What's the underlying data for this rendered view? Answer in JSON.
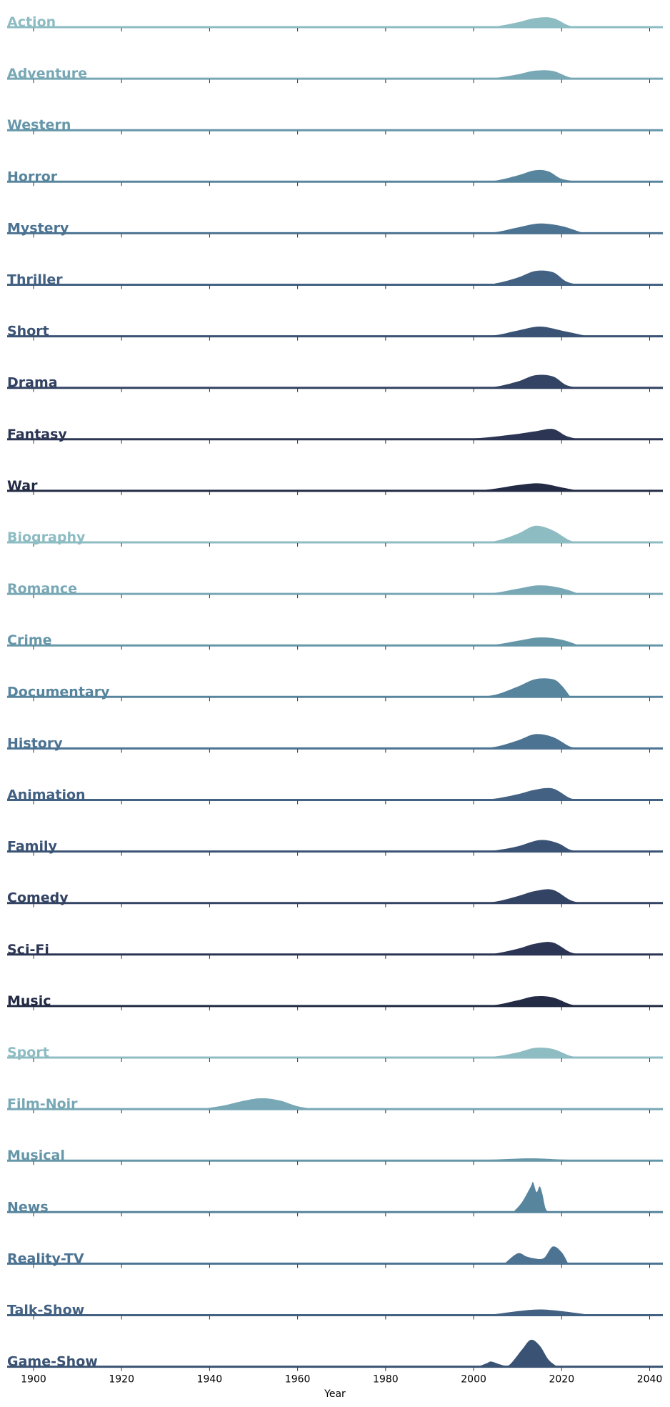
{
  "chart_data": {
    "type": "area",
    "subtype": "ridgeline-density",
    "xlabel": "Year",
    "xlim": [
      1894,
      2043
    ],
    "xticks": [
      1900,
      1920,
      1940,
      1960,
      1980,
      2000,
      2020,
      2040
    ],
    "ylim": [
      0,
      1
    ],
    "grid": false,
    "legend": "none",
    "palette": [
      "#8ebcc3",
      "#78a8b5",
      "#6697a9",
      "#58859e",
      "#4c7392",
      "#426183",
      "#3a5273",
      "#334363",
      "#2c3654",
      "#232b45"
    ],
    "series": [
      {
        "name": "Action",
        "x": [
          2000,
          2005,
          2010,
          2014,
          2018,
          2022,
          2026
        ],
        "y": [
          0.0,
          0.03,
          0.17,
          0.32,
          0.32,
          0.04,
          0.0
        ]
      },
      {
        "name": "Adventure",
        "x": [
          2000,
          2005,
          2010,
          2014,
          2018,
          2022,
          2026
        ],
        "y": [
          0.0,
          0.03,
          0.15,
          0.28,
          0.27,
          0.04,
          0.0
        ]
      },
      {
        "name": "Western",
        "x": [
          1990,
          2005,
          2015,
          2025,
          2035
        ],
        "y": [
          0.0,
          0.01,
          0.02,
          0.01,
          0.0
        ]
      },
      {
        "name": "Horror",
        "x": [
          2000,
          2005,
          2010,
          2014,
          2017,
          2020,
          2024
        ],
        "y": [
          0.0,
          0.04,
          0.22,
          0.4,
          0.36,
          0.1,
          0.0
        ]
      },
      {
        "name": "Mystery",
        "x": [
          2000,
          2005,
          2010,
          2015,
          2020,
          2025
        ],
        "y": [
          0.0,
          0.04,
          0.2,
          0.34,
          0.25,
          0.0
        ]
      },
      {
        "name": "Thriller",
        "x": [
          1900,
          1915,
          1920,
          2000,
          2005,
          2010,
          2014,
          2018,
          2021,
          2024
        ],
        "y": [
          0.0,
          0.01,
          0.0,
          0.0,
          0.05,
          0.25,
          0.48,
          0.44,
          0.12,
          0.0
        ]
      },
      {
        "name": "Short",
        "x": [
          2000,
          2005,
          2010,
          2015,
          2020,
          2026
        ],
        "y": [
          0.0,
          0.04,
          0.2,
          0.34,
          0.2,
          0.0
        ]
      },
      {
        "name": "Drama",
        "x": [
          2000,
          2005,
          2010,
          2014,
          2018,
          2021,
          2024
        ],
        "y": [
          0.0,
          0.04,
          0.22,
          0.44,
          0.4,
          0.1,
          0.0
        ]
      },
      {
        "name": "Fantasy",
        "x": [
          1990,
          2000,
          2008,
          2014,
          2018,
          2021,
          2024
        ],
        "y": [
          0.0,
          0.03,
          0.15,
          0.28,
          0.36,
          0.12,
          0.0
        ]
      },
      {
        "name": "War",
        "x": [
          1995,
          2003,
          2010,
          2015,
          2020,
          2024
        ],
        "y": [
          0.0,
          0.04,
          0.2,
          0.26,
          0.12,
          0.0
        ]
      },
      {
        "name": "Biography",
        "x": [
          2000,
          2005,
          2010,
          2014,
          2018,
          2022,
          2025
        ],
        "y": [
          0.0,
          0.05,
          0.3,
          0.58,
          0.42,
          0.06,
          0.0
        ]
      },
      {
        "name": "Romance",
        "x": [
          2000,
          2005,
          2010,
          2015,
          2020,
          2024
        ],
        "y": [
          0.0,
          0.04,
          0.18,
          0.3,
          0.2,
          0.0
        ]
      },
      {
        "name": "Crime",
        "x": [
          2000,
          2005,
          2010,
          2015,
          2020,
          2024
        ],
        "y": [
          0.0,
          0.03,
          0.16,
          0.28,
          0.2,
          0.0
        ]
      },
      {
        "name": "Documentary",
        "x": [
          2000,
          2005,
          2010,
          2014,
          2018,
          2020,
          2022
        ],
        "y": [
          0.0,
          0.08,
          0.36,
          0.62,
          0.62,
          0.4,
          0.0
        ]
      },
      {
        "name": "History",
        "x": [
          2000,
          2005,
          2010,
          2014,
          2018,
          2022,
          2025
        ],
        "y": [
          0.0,
          0.06,
          0.28,
          0.5,
          0.4,
          0.06,
          0.0
        ]
      },
      {
        "name": "Animation",
        "x": [
          2000,
          2005,
          2010,
          2014,
          2018,
          2022,
          2025
        ],
        "y": [
          0.0,
          0.05,
          0.2,
          0.36,
          0.4,
          0.06,
          0.0
        ]
      },
      {
        "name": "Family",
        "x": [
          2000,
          2005,
          2010,
          2015,
          2019,
          2022,
          2025
        ],
        "y": [
          0.0,
          0.04,
          0.18,
          0.4,
          0.3,
          0.06,
          0.0
        ]
      },
      {
        "name": "Comedy",
        "x": [
          2000,
          2005,
          2010,
          2014,
          2018,
          2022,
          2025
        ],
        "y": [
          0.0,
          0.05,
          0.24,
          0.42,
          0.46,
          0.1,
          0.0
        ]
      },
      {
        "name": "Sci-Fi",
        "x": [
          2000,
          2005,
          2010,
          2014,
          2018,
          2022,
          2025
        ],
        "y": [
          0.0,
          0.04,
          0.2,
          0.38,
          0.42,
          0.08,
          0.0
        ]
      },
      {
        "name": "Music",
        "x": [
          2000,
          2005,
          2010,
          2014,
          2018,
          2022,
          2025
        ],
        "y": [
          0.0,
          0.04,
          0.2,
          0.34,
          0.3,
          0.06,
          0.0
        ]
      },
      {
        "name": "Sport",
        "x": [
          2000,
          2005,
          2010,
          2014,
          2018,
          2022,
          2025
        ],
        "y": [
          0.0,
          0.04,
          0.18,
          0.34,
          0.3,
          0.06,
          0.0
        ]
      },
      {
        "name": "Film-Noir",
        "x": [
          1938,
          1943,
          1948,
          1952,
          1956,
          1960,
          1964
        ],
        "y": [
          0.0,
          0.12,
          0.3,
          0.38,
          0.3,
          0.1,
          0.0
        ]
      },
      {
        "name": "Musical",
        "x": [
          1995,
          2005,
          2013,
          2020,
          2030
        ],
        "y": [
          0.0,
          0.04,
          0.08,
          0.04,
          0.0
        ]
      },
      {
        "name": "News",
        "x": [
          2009,
          2011,
          2013,
          2013.5,
          2014.3,
          2015,
          2015.6,
          2016.3,
          2017
        ],
        "y": [
          0.0,
          0.35,
          0.9,
          1.05,
          0.7,
          0.9,
          0.65,
          0.15,
          0.0
        ]
      },
      {
        "name": "Reality-TV",
        "x": [
          2007,
          2010,
          2012,
          2014,
          2016,
          2018,
          2020,
          2021.5
        ],
        "y": [
          0.0,
          0.36,
          0.25,
          0.18,
          0.2,
          0.6,
          0.4,
          0.0
        ]
      },
      {
        "name": "Talk-Show",
        "x": [
          2000,
          2005,
          2010,
          2015,
          2020,
          2027
        ],
        "y": [
          0.0,
          0.04,
          0.14,
          0.2,
          0.14,
          0.0
        ]
      },
      {
        "name": "Game-Show",
        "x": [
          2001,
          2003,
          2004,
          2006,
          2008,
          2011,
          2013,
          2015,
          2017,
          2019
        ],
        "y": [
          0.0,
          0.12,
          0.18,
          0.08,
          0.05,
          0.6,
          0.94,
          0.74,
          0.25,
          0.0
        ]
      }
    ]
  }
}
